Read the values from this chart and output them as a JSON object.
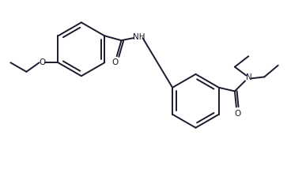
{
  "background": "#ffffff",
  "line_color": "#1a1a2e",
  "line_width": 1.4,
  "fig_width": 3.87,
  "fig_height": 2.19,
  "dpi": 100,
  "xlim": [
    0,
    10
  ],
  "ylim": [
    0,
    5.65
  ]
}
